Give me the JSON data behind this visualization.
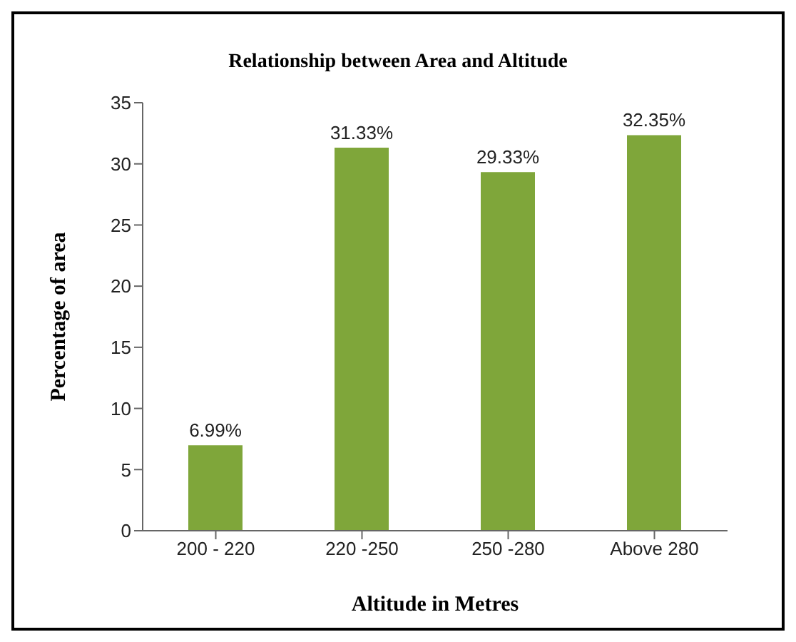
{
  "chart_data": {
    "type": "bar",
    "title": "Relationship between Area and Altitude",
    "xlabel": "Altitude in Metres",
    "ylabel": "Percentage of area",
    "categories": [
      "200 - 220",
      "220 -250",
      "250 -280",
      "Above 280"
    ],
    "values": [
      6.99,
      31.33,
      29.33,
      32.35
    ],
    "value_labels": [
      "6.99%",
      "31.33%",
      "29.33%",
      "32.35%"
    ],
    "color": "#7fa63a",
    "ylim": [
      0,
      35
    ],
    "yticks": [
      0,
      5,
      10,
      15,
      20,
      25,
      30,
      35
    ],
    "grid": false
  }
}
